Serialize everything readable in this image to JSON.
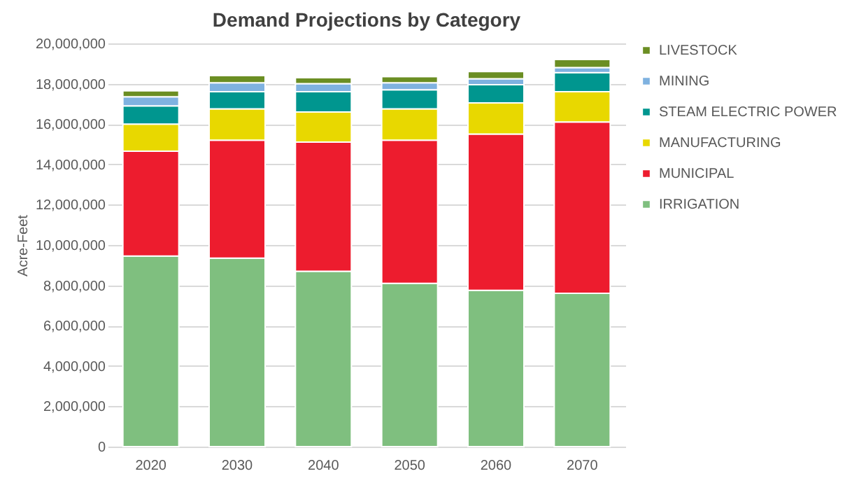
{
  "chart_data": {
    "type": "bar",
    "title": "Demand Projections by Category",
    "ylabel": "Acre-Feet",
    "categories": [
      "2020",
      "2030",
      "2040",
      "2050",
      "2060",
      "2070"
    ],
    "stacked": true,
    "series": [
      {
        "name": "IRRIGATION",
        "color": "#7fbf7f",
        "values": [
          9450000,
          9350000,
          8700000,
          8100000,
          7750000,
          7600000
        ]
      },
      {
        "name": "MUNICIPAL",
        "color": "#ed1c2e",
        "values": [
          5200000,
          5850000,
          6400000,
          7100000,
          7750000,
          8500000
        ]
      },
      {
        "name": "MANUFACTURING",
        "color": "#e8d800",
        "values": [
          1350000,
          1550000,
          1500000,
          1550000,
          1550000,
          1500000
        ]
      },
      {
        "name": "STEAM ELECTRIC POWER",
        "color": "#00968f",
        "values": [
          900000,
          850000,
          1000000,
          950000,
          900000,
          950000
        ]
      },
      {
        "name": "MINING",
        "color": "#7fb2e0",
        "values": [
          450000,
          450000,
          400000,
          350000,
          300000,
          250000
        ]
      },
      {
        "name": "LIVESTOCK",
        "color": "#6b8e23",
        "values": [
          300000,
          350000,
          300000,
          300000,
          350000,
          400000
        ]
      }
    ],
    "ylim": [
      0,
      20000000
    ],
    "yticks": [
      0,
      {
        "value": 2000000,
        "label": "2,000,000"
      },
      {
        "value": 4000000,
        "label": "4,000,000"
      },
      {
        "value": 6000000,
        "label": "6,000,000"
      },
      {
        "value": 8000000,
        "label": "8,000,000"
      },
      {
        "value": 10000000,
        "label": "10,000,000"
      },
      {
        "value": 12000000,
        "label": "12,000,000"
      },
      {
        "value": 14000000,
        "label": "14,000,000"
      },
      {
        "value": 16000000,
        "label": "16,000,000"
      },
      {
        "value": 18000000,
        "label": "18,000,000"
      },
      {
        "value": 20000000,
        "label": "20,000,000"
      }
    ],
    "grid": "y",
    "legend": "right"
  }
}
